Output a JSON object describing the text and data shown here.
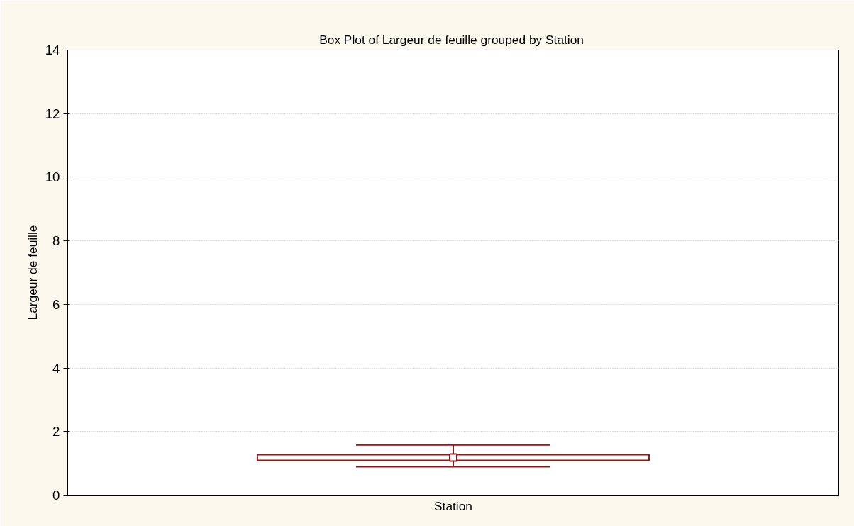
{
  "chart_data": {
    "type": "box",
    "title": "Box Plot of Largeur de feuille grouped by  Station",
    "xlabel": "Station",
    "ylabel": "Largeur de feuille",
    "categories": [
      null
    ],
    "boxes": [
      {
        "low": 0.89,
        "q1": 1.09,
        "median": 1.18,
        "q3": 1.27,
        "high": 1.58
      }
    ],
    "color": "#8b1a1a",
    "marker": "square",
    "ylim": [
      0,
      14
    ],
    "yticks": [
      0,
      2,
      4,
      6,
      8,
      10,
      12,
      14
    ],
    "grid": "y"
  }
}
